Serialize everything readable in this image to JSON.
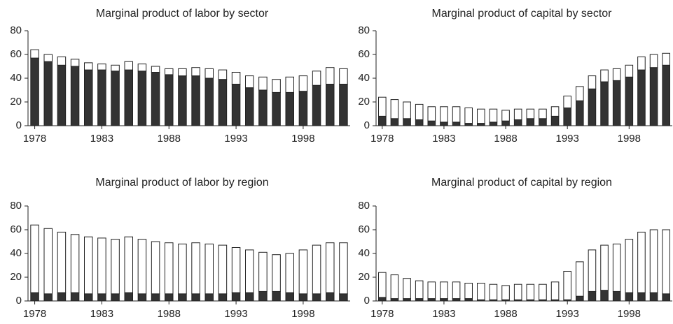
{
  "chart_data": [
    {
      "type": "bar",
      "stacked": true,
      "title": "Marginal product of labor by sector",
      "categories": [
        "1978",
        null,
        null,
        null,
        null,
        "1983",
        null,
        null,
        null,
        null,
        "1988",
        null,
        null,
        null,
        null,
        "1993",
        null,
        null,
        null,
        null,
        "1998",
        null,
        null,
        null
      ],
      "series": [
        {
          "color": "#333333",
          "values": [
            57,
            54,
            51,
            50,
            47,
            47,
            46,
            47,
            46,
            45,
            43,
            42,
            42,
            40,
            39,
            35,
            32,
            30,
            28,
            28,
            29,
            34,
            35,
            35
          ]
        },
        {
          "color": "#ffffff",
          "values": [
            7,
            6,
            7,
            6,
            6,
            5,
            5,
            7,
            6,
            5,
            5,
            6,
            7,
            8,
            8,
            10,
            10,
            11,
            11,
            13,
            13,
            12,
            14,
            13
          ]
        }
      ],
      "ylim": [
        0,
        80
      ],
      "yticks": [
        0,
        20,
        40,
        60,
        80
      ]
    },
    {
      "type": "bar",
      "stacked": true,
      "title": "Marginal product of capital by sector",
      "categories": [
        "1978",
        null,
        null,
        null,
        null,
        "1983",
        null,
        null,
        null,
        null,
        "1988",
        null,
        null,
        null,
        null,
        "1993",
        null,
        null,
        null,
        null,
        "1998",
        null,
        null,
        null
      ],
      "series": [
        {
          "color": "#333333",
          "values": [
            8,
            6,
            6,
            5,
            4,
            3,
            3,
            2,
            2,
            3,
            4,
            5,
            6,
            6,
            8,
            15,
            21,
            31,
            37,
            38,
            41,
            47,
            49,
            51
          ]
        },
        {
          "color": "#ffffff",
          "values": [
            16,
            16,
            14,
            13,
            12,
            13,
            13,
            13,
            12,
            11,
            9,
            9,
            8,
            8,
            8,
            10,
            12,
            11,
            10,
            10,
            10,
            11,
            11,
            10
          ]
        }
      ],
      "ylim": [
        0,
        80
      ],
      "yticks": [
        0,
        20,
        40,
        60,
        80
      ]
    },
    {
      "type": "bar",
      "stacked": true,
      "title": "Marginal product of labor by region",
      "categories": [
        "1978",
        null,
        null,
        null,
        null,
        "1983",
        null,
        null,
        null,
        null,
        "1988",
        null,
        null,
        null,
        null,
        "1993",
        null,
        null,
        null,
        null,
        "1998",
        null,
        null,
        null
      ],
      "series": [
        {
          "color": "#333333",
          "values": [
            7,
            6,
            7,
            7,
            6,
            6,
            6,
            7,
            6,
            6,
            6,
            6,
            6,
            6,
            6,
            7,
            7,
            8,
            8,
            7,
            6,
            6,
            7,
            6
          ]
        },
        {
          "color": "#ffffff",
          "values": [
            57,
            55,
            51,
            49,
            48,
            47,
            46,
            47,
            46,
            44,
            43,
            42,
            43,
            42,
            41,
            38,
            36,
            33,
            31,
            33,
            37,
            41,
            42,
            43
          ]
        }
      ],
      "ylim": [
        0,
        80
      ],
      "yticks": [
        0,
        20,
        40,
        60,
        80
      ]
    },
    {
      "type": "bar",
      "stacked": true,
      "title": "Marginal product of capital by region",
      "categories": [
        "1978",
        null,
        null,
        null,
        null,
        "1983",
        null,
        null,
        null,
        null,
        "1988",
        null,
        null,
        null,
        null,
        "1993",
        null,
        null,
        null,
        null,
        "1998",
        null,
        null,
        null
      ],
      "series": [
        {
          "color": "#333333",
          "values": [
            3,
            2,
            2,
            2,
            2,
            2,
            2,
            2,
            1,
            1,
            1,
            1,
            1,
            1,
            1,
            1,
            4,
            8,
            9,
            8,
            7,
            7,
            7,
            6
          ]
        },
        {
          "color": "#ffffff",
          "values": [
            21,
            20,
            17,
            15,
            14,
            14,
            14,
            13,
            14,
            13,
            12,
            13,
            13,
            13,
            15,
            24,
            29,
            35,
            38,
            40,
            45,
            51,
            53,
            54
          ]
        }
      ],
      "ylim": [
        0,
        80
      ],
      "yticks": [
        0,
        20,
        40,
        60,
        80
      ]
    }
  ]
}
